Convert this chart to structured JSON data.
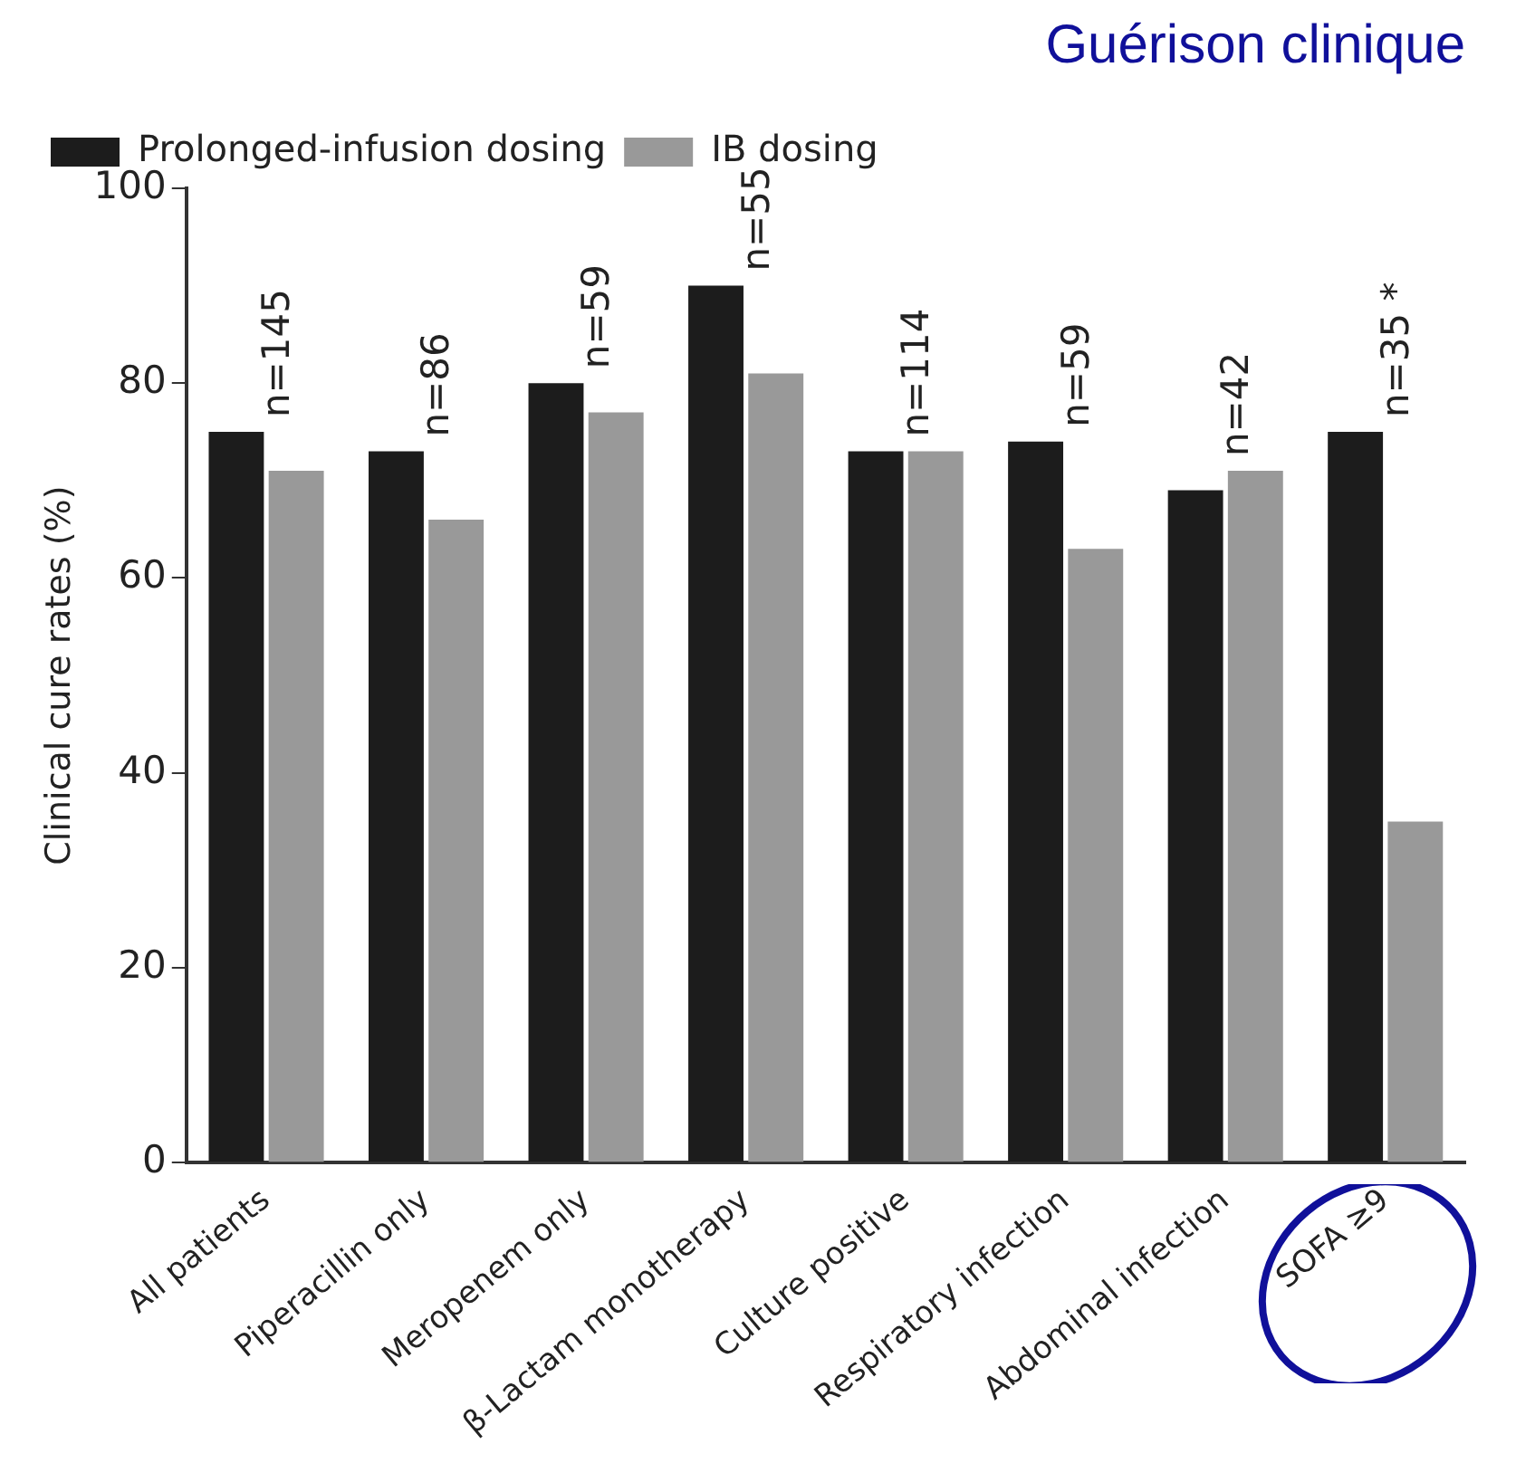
{
  "chart_data": {
    "type": "bar",
    "title": "Guérison clinique",
    "ylabel": "Clinical cure rates (%)",
    "categories": [
      "All patients",
      "Piperacillin only",
      "Meropenem only",
      "β-Lactam monotherapy",
      "Culture positive",
      "Respiratory infection",
      "Abdominal infection",
      "SOFA ≥9"
    ],
    "series": [
      {
        "name": "Prolonged-infusion dosing",
        "color": "#1c1c1c",
        "values": [
          75,
          73,
          80,
          90,
          73,
          74,
          69,
          75
        ]
      },
      {
        "name": "IB dosing",
        "color": "#999999",
        "values": [
          71,
          66,
          77,
          81,
          73,
          63,
          71,
          35
        ]
      }
    ],
    "ylim": [
      0,
      100
    ],
    "yticks": [
      0,
      20,
      40,
      60,
      80,
      100
    ],
    "grid": false,
    "legend": "top left",
    "annotations": [
      "n=145",
      "n=86",
      "n=59",
      "n=55",
      "n=114",
      "n=59",
      "n=42",
      "n=35 *"
    ]
  }
}
